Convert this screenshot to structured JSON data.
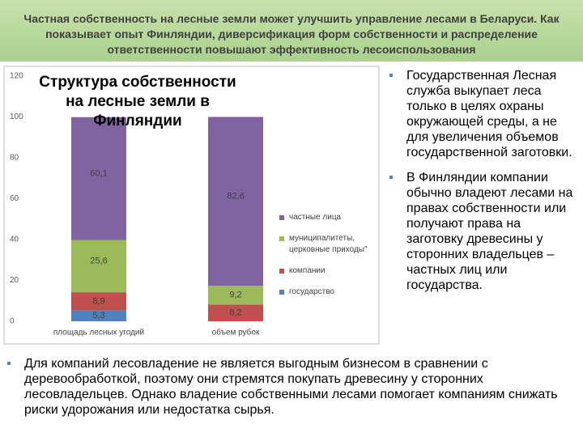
{
  "header": {
    "title": "Частная собственность на лесные земли может улучшить управление лесами в Беларуси. Как показывает опыт Финляндии, диверсификация форм собственности и распределение ответственности повышают эффективность лесоиспользования"
  },
  "chart_data": {
    "type": "stacked_bar",
    "title": "Структура собственности на лесные земли в Финляндии",
    "categories": [
      "площадь лесных угодий",
      "объем рубок"
    ],
    "series": [
      {
        "name": "государство",
        "color": "#4f81bd",
        "values": [
          5.3,
          0
        ],
        "value_labels": [
          "5,3",
          null
        ]
      },
      {
        "name": "компании",
        "color": "#c0504d",
        "values": [
          8.9,
          8.2
        ],
        "value_labels": [
          "8,9",
          "8,2"
        ]
      },
      {
        "name": "муниципалитеты, церковные приходы\"",
        "color": "#9bbb59",
        "values": [
          25.6,
          9.2
        ],
        "value_labels": [
          "25,6",
          "9,2"
        ]
      },
      {
        "name": "частные лица",
        "color": "#8064a2",
        "values": [
          60.1,
          82.6
        ],
        "value_labels": [
          "60,1",
          "82,6"
        ]
      }
    ],
    "ylim": [
      0,
      120
    ],
    "yticks": [
      0,
      20,
      40,
      60,
      80,
      100,
      120
    ],
    "grid": false,
    "legend": "right"
  },
  "bullets": {
    "right": [
      "Государственная Лесная служба выкупает леса только в целях охраны окружающей среды, а не для увеличения объемов государственной заготовки.",
      "В Финляндии компании обычно владеют лесами на правах собственности или получают права на заготовку древесины у сторонних владельцев – частных лиц  или государства."
    ],
    "bottom": [
      "Для компаний лесовладение не является выгодным бизнесом в сравнении с деревообработкой, поэтому они стремятся покупать древесину у сторонних лесовладельцев. Однако владение собственными лесами помогает компаниям снижать риски удорожания или недостатка сырья."
    ]
  }
}
